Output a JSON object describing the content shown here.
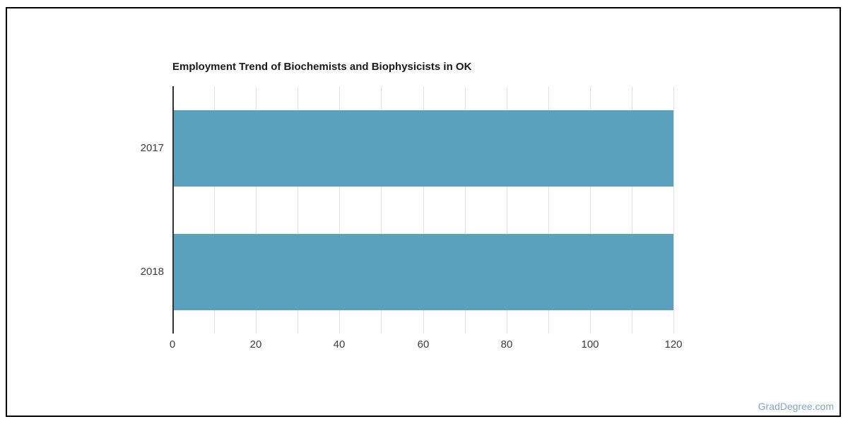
{
  "page": {
    "background": "#ffffff",
    "frame_border_color": "#000000"
  },
  "watermark": {
    "text": "GradDegree.com",
    "color": "#7fa8c1"
  },
  "chart_data": {
    "type": "bar",
    "orientation": "horizontal",
    "title": "Employment Trend of Biochemists and Biophysicists in OK",
    "categories": [
      "2017",
      "2018"
    ],
    "series": [
      {
        "name": "Employment",
        "values": [
          120,
          120
        ]
      }
    ],
    "xlabel": "",
    "ylabel": "",
    "xlim": [
      0,
      120
    ],
    "x_ticks": [
      0,
      20,
      40,
      60,
      80,
      100,
      120
    ],
    "gridline_step": 10,
    "grid": true,
    "legend": "none",
    "bar_color": "#5aa0bf",
    "gridline_color": "#e1e1e1",
    "axis_line_color": "#333333",
    "tick_label_color": "#3d3d3d",
    "title_color": "#1a1a1a"
  }
}
